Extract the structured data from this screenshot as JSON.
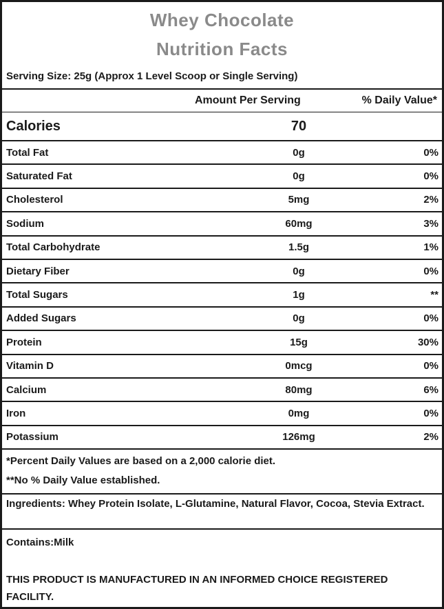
{
  "header": {
    "product_name": "Whey Chocolate",
    "title": "Nutrition Facts"
  },
  "serving": {
    "text": "Serving Size: 25g (Approx 1 Level Scoop or Single Serving)"
  },
  "columns": {
    "amount": "Amount Per Serving",
    "daily_value": "% Daily Value*"
  },
  "calories": {
    "label": "Calories",
    "amount": "70",
    "daily_value": ""
  },
  "nutrients": [
    {
      "label": "Total Fat",
      "amount": "0g",
      "daily_value": "0%"
    },
    {
      "label": "Saturated Fat",
      "amount": "0g",
      "daily_value": "0%"
    },
    {
      "label": "Cholesterol",
      "amount": "5mg",
      "daily_value": "2%"
    },
    {
      "label": "Sodium",
      "amount": "60mg",
      "daily_value": "3%"
    },
    {
      "label": "Total Carbohydrate",
      "amount": "1.5g",
      "daily_value": "1%"
    },
    {
      "label": "Dietary Fiber",
      "amount": "0g",
      "daily_value": "0%"
    },
    {
      "label": "Total Sugars",
      "amount": "1g",
      "daily_value": "**"
    },
    {
      "label": "Added Sugars",
      "amount": "0g",
      "daily_value": "0%"
    },
    {
      "label": "Protein",
      "amount": "15g",
      "daily_value": "30%"
    },
    {
      "label": "Vitamin D",
      "amount": "0mcg",
      "daily_value": "0%"
    },
    {
      "label": "Calcium",
      "amount": "80mg",
      "daily_value": "6%"
    },
    {
      "label": "Iron",
      "amount": "0mg",
      "daily_value": "0%"
    },
    {
      "label": "Potassium",
      "amount": "126mg",
      "daily_value": "2%"
    }
  ],
  "footnotes": {
    "line1": "*Percent Daily Values are based on a 2,000 calorie diet.",
    "line2": "**No % Daily Value established."
  },
  "ingredients": {
    "label": "Ingredients:",
    "text": " Whey Protein Isolate, L-Glutamine, Natural Flavor, Cocoa, Stevia Extract."
  },
  "contains": {
    "label": "Contains:",
    "text": "Milk"
  },
  "facility_note": "THIS PRODUCT IS MANUFACTURED IN AN INFORMED CHOICE REGISTERED FACILITY.",
  "colors": {
    "title_gray": "#8a8a8a",
    "text_black": "#1a1a1a",
    "border_black": "#1a1a1a",
    "background": "#ffffff"
  }
}
